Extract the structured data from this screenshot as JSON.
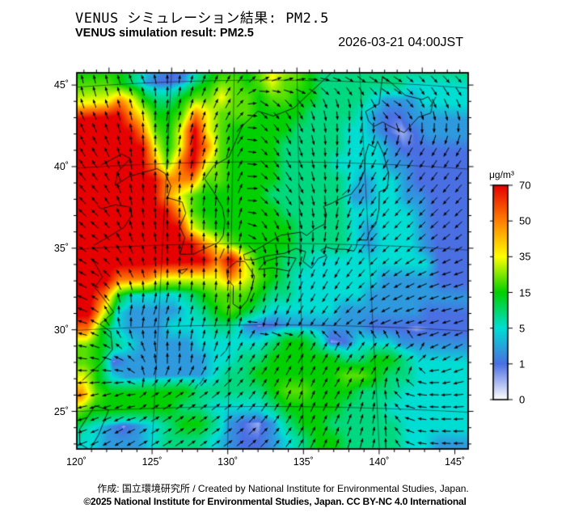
{
  "header": {
    "title_jp": "VENUS シミュレーション結果: PM2.5",
    "title_en": "VENUS simulation result: PM2.5",
    "datetime": "2026-03-21 04:00JST"
  },
  "credits": {
    "line1": "作成: 国立環境研究所 / Created by National Institute for Environmental Studies, Japan.",
    "line2": "©2025 National Institute for Environmental Studies, Japan. CC BY-NC 4.0 International"
  },
  "colorbar": {
    "unit": "μg/m³",
    "tick_labels": [
      "70",
      "50",
      "35",
      "15",
      "5",
      "1",
      "0"
    ],
    "stops": [
      {
        "v": 0,
        "c": "#ffffff"
      },
      {
        "v": 1,
        "c": "#4a6fe3"
      },
      {
        "v": 5,
        "c": "#00ded4"
      },
      {
        "v": 15,
        "c": "#00d000"
      },
      {
        "v": 35,
        "c": "#ffff00"
      },
      {
        "v": 50,
        "c": "#ff8000"
      },
      {
        "v": 70,
        "c": "#e60000"
      }
    ]
  },
  "axes": {
    "x_ticks": [
      {
        "label": "120˚",
        "lon": 120
      },
      {
        "label": "125˚",
        "lon": 125
      },
      {
        "label": "130˚",
        "lon": 130
      },
      {
        "label": "135˚",
        "lon": 135
      },
      {
        "label": "140˚",
        "lon": 140
      },
      {
        "label": "145˚",
        "lon": 145
      }
    ],
    "y_ticks": [
      {
        "label": "45˚",
        "lat": 45
      },
      {
        "label": "40˚",
        "lat": 40
      },
      {
        "label": "35˚",
        "lat": 35
      },
      {
        "label": "30˚",
        "lat": 30
      },
      {
        "label": "25˚",
        "lat": 25
      }
    ]
  },
  "map": {
    "variable": "PM2.5",
    "extent": {
      "lon_min": 120,
      "lon_max": 145,
      "lat_min": 23,
      "lat_max": 46
    },
    "value_key": {
      "0": 0.3,
      "1": 1,
      "2": 2.5,
      "3": 5,
      "4": 9,
      "5": 15,
      "6": 22,
      "7": 35,
      "8": 50,
      "9": 72,
      "a": 0.55
    },
    "pm_grid": {
      "lon0": 120,
      "dlon": 1,
      "lat0": 46,
      "dlat": -1,
      "rows": [
        "55432113455567765444444444",
        "65421124566567665444444433",
        "78754456676656655444432223",
        "99875568766655554444321122",
        "99986579765555544443321a12",
        "99997579865555444443332111",
        "99998689765555444433332211",
        "99999888665555444443233211",
        "99999876555554444442233221",
        "99999986555555444443333321",
        "99999997655555544443233321",
        "99999999876555544443233321",
        "99999999989755443333333331",
        "99888777778765433333322221",
        "98533334566654433333222222",
        "97322223456543333322222211",
        "853222333442a1222222111a11",
        "65432222333334554a13332222",
        "65a22222233445555544554333",
        "75322222234455555566544333",
        "86555555444445665554443333",
        "65555554433334555544433333",
        "432a23455421a2455444443333",
        "33222344432112345544443322"
      ]
    },
    "wind": {
      "lon0": 120,
      "dlon": 2.5,
      "lat0": 46,
      "dlat": -2.5,
      "angles_deg": [
        [
          100,
          120,
          90,
          70,
          60,
          45,
          30,
          0,
          340,
          330,
          320
        ],
        [
          110,
          100,
          80,
          70,
          60,
          315,
          300,
          280,
          270,
          330,
          290
        ],
        [
          120,
          95,
          85,
          75,
          75,
          310,
          290,
          270,
          250,
          240,
          240
        ],
        [
          130,
          100,
          90,
          80,
          85,
          320,
          300,
          270,
          240,
          230,
          230
        ],
        [
          140,
          110,
          95,
          90,
          90,
          300,
          280,
          260,
          230,
          225,
          220
        ],
        [
          150,
          120,
          90,
          90,
          90,
          270,
          250,
          240,
          225,
          210,
          200
        ],
        [
          160,
          80,
          70,
          75,
          80,
          250,
          240,
          230,
          210,
          200,
          195
        ],
        [
          170,
          150,
          100,
          85,
          60,
          55,
          60,
          60,
          45,
          30,
          210
        ],
        [
          190,
          200,
          30,
          35,
          40,
          60,
          70,
          60,
          80,
          170,
          185
        ],
        [
          200,
          210,
          30,
          35,
          35,
          45,
          60,
          70,
          80,
          170,
          180
        ]
      ]
    },
    "coastlines": [
      [
        [
          120,
          26.9
        ],
        [
          121.2,
          27.9
        ],
        [
          121.9,
          28.7
        ],
        [
          121.7,
          29.8
        ],
        [
          120.9,
          30.3
        ],
        [
          121.8,
          31.0
        ],
        [
          120.9,
          32.0
        ],
        [
          120.3,
          32.6
        ],
        [
          120.8,
          33.2
        ],
        [
          120,
          34.3
        ]
      ],
      [
        [
          120,
          35.2
        ],
        [
          120.9,
          35.6
        ],
        [
          122.1,
          36.2
        ],
        [
          122.6,
          36.9
        ],
        [
          122.5,
          37.4
        ],
        [
          121.3,
          37.6
        ],
        [
          120.3,
          37.4
        ],
        [
          120,
          37.6
        ]
      ],
      [
        [
          120,
          40.1
        ],
        [
          121.5,
          40.7
        ],
        [
          122.2,
          40.4
        ],
        [
          121.3,
          39.6
        ],
        [
          121.2,
          38.8
        ],
        [
          122.2,
          39.3
        ],
        [
          123.2,
          39.5
        ],
        [
          124.3,
          39.7
        ],
        [
          124.9,
          39.4
        ],
        [
          125.4,
          38.6
        ],
        [
          125.2,
          37.9
        ],
        [
          126.3,
          37.6
        ],
        [
          126.6,
          36.9
        ],
        [
          126.2,
          36.1
        ],
        [
          126.6,
          35.4
        ],
        [
          126.3,
          34.4
        ],
        [
          127.3,
          34.4
        ],
        [
          128.3,
          34.8
        ],
        [
          129.1,
          35.1
        ],
        [
          129.4,
          35.5
        ],
        [
          129.5,
          36.4
        ],
        [
          129.3,
          37.2
        ],
        [
          128.6,
          38.2
        ],
        [
          127.9,
          39.0
        ],
        [
          128.6,
          39.8
        ],
        [
          129.7,
          40.3
        ],
        [
          130.7,
          42.2
        ],
        [
          131.9,
          43.1
        ],
        [
          133.1,
          42.8
        ],
        [
          134.7,
          43.3
        ],
        [
          136.2,
          44.4
        ],
        [
          137.6,
          45.4
        ],
        [
          138.4,
          46.0
        ]
      ],
      [
        [
          131.0,
          34.0
        ],
        [
          130.9,
          34.3
        ],
        [
          131.8,
          34.6
        ],
        [
          132.8,
          35.1
        ],
        [
          133.6,
          35.5
        ],
        [
          135.1,
          35.7
        ],
        [
          135.5,
          35.5
        ],
        [
          136.1,
          35.9
        ],
        [
          136.8,
          36.2
        ],
        [
          137.0,
          36.8
        ],
        [
          136.8,
          37.3
        ],
        [
          137.4,
          37.5
        ],
        [
          138.3,
          37.9
        ],
        [
          138.9,
          38.1
        ],
        [
          139.5,
          38.7
        ],
        [
          140.0,
          39.6
        ],
        [
          140.1,
          40.5
        ],
        [
          140.4,
          41.2
        ],
        [
          140.9,
          41.0
        ],
        [
          141.1,
          41.4
        ],
        [
          141.5,
          40.6
        ],
        [
          141.8,
          39.4
        ],
        [
          141.6,
          38.5
        ],
        [
          141.0,
          38.3
        ],
        [
          140.9,
          37.2
        ],
        [
          140.6,
          36.3
        ],
        [
          140.1,
          35.8
        ],
        [
          139.9,
          35.3
        ],
        [
          139.2,
          35.3
        ],
        [
          139.1,
          34.9
        ],
        [
          138.9,
          34.6
        ],
        [
          138.3,
          34.7
        ],
        [
          137.4,
          34.7
        ],
        [
          136.9,
          34.8
        ],
        [
          136.5,
          34.6
        ],
        [
          136.9,
          34.3
        ],
        [
          136.3,
          34.1
        ],
        [
          135.8,
          33.5
        ],
        [
          135.2,
          33.9
        ],
        [
          135.4,
          34.5
        ],
        [
          134.7,
          34.7
        ],
        [
          133.9,
          34.4
        ],
        [
          133.1,
          34.3
        ],
        [
          132.4,
          34.2
        ],
        [
          131.7,
          34.0
        ],
        [
          131.0,
          34.0
        ]
      ],
      [
        [
          130.4,
          33.9
        ],
        [
          129.7,
          33.4
        ],
        [
          129.8,
          32.8
        ],
        [
          130.2,
          32.4
        ],
        [
          130.2,
          31.3
        ],
        [
          130.7,
          31.0
        ],
        [
          131.2,
          31.5
        ],
        [
          131.5,
          32.2
        ],
        [
          131.7,
          33.0
        ],
        [
          131.0,
          33.9
        ],
        [
          130.4,
          33.9
        ]
      ],
      [
        [
          132.0,
          33.4
        ],
        [
          133.0,
          33.5
        ],
        [
          134.2,
          33.3
        ],
        [
          134.7,
          34.1
        ],
        [
          133.6,
          34.2
        ],
        [
          132.5,
          33.9
        ],
        [
          132.0,
          33.4
        ]
      ],
      [
        [
          140.5,
          42.6
        ],
        [
          140.3,
          43.2
        ],
        [
          141.4,
          43.7
        ],
        [
          141.6,
          44.6
        ],
        [
          141.8,
          45.4
        ],
        [
          142.5,
          45.0
        ],
        [
          143.5,
          44.3
        ],
        [
          144.8,
          44.1
        ],
        [
          145.3,
          44.3
        ],
        [
          145.6,
          43.9
        ],
        [
          145.4,
          43.3
        ],
        [
          144.4,
          43.0
        ],
        [
          143.2,
          42.0
        ],
        [
          142.0,
          42.4
        ],
        [
          141.6,
          42.6
        ],
        [
          140.9,
          42.3
        ],
        [
          140.5,
          42.6
        ]
      ],
      [
        [
          141.9,
          46.0
        ],
        [
          142.1,
          45.88
        ],
        [
          142.4,
          46.0
        ]
      ],
      [
        [
          145.4,
          43.7
        ],
        [
          145.9,
          44.3
        ]
      ],
      [
        [
          121.0,
          25.3
        ],
        [
          121.95,
          25.0
        ],
        [
          121.4,
          23.5
        ],
        [
          120.9,
          22.6
        ],
        [
          120.2,
          23.0
        ],
        [
          120.1,
          23.9
        ],
        [
          121.0,
          25.3
        ]
      ],
      [
        [
          126.2,
          33.4
        ],
        [
          126.9,
          33.5
        ],
        [
          126.5,
          33.2
        ],
        [
          126.2,
          33.4
        ]
      ],
      [
        [
          129.2,
          34.1
        ],
        [
          129.5,
          34.7
        ]
      ],
      [
        [
          138.2,
          38.0
        ],
        [
          138.6,
          38.3
        ]
      ],
      [
        [
          129.4,
          28.1
        ],
        [
          129.7,
          28.4
        ]
      ],
      [
        [
          128.0,
          26.4
        ],
        [
          128.3,
          26.8
        ]
      ],
      [
        [
          127.7,
          26.1
        ],
        [
          127.9,
          26.4
        ]
      ],
      [
        [
          130.4,
          30.4
        ],
        [
          130.7,
          30.7
        ]
      ],
      [
        [
          139.4,
          34.7
        ],
        [
          139.5,
          34.5
        ]
      ]
    ],
    "graticule": {
      "meridians": [
        125,
        130,
        135,
        140
      ],
      "parallels": [
        25,
        30,
        35,
        40,
        45
      ]
    }
  }
}
